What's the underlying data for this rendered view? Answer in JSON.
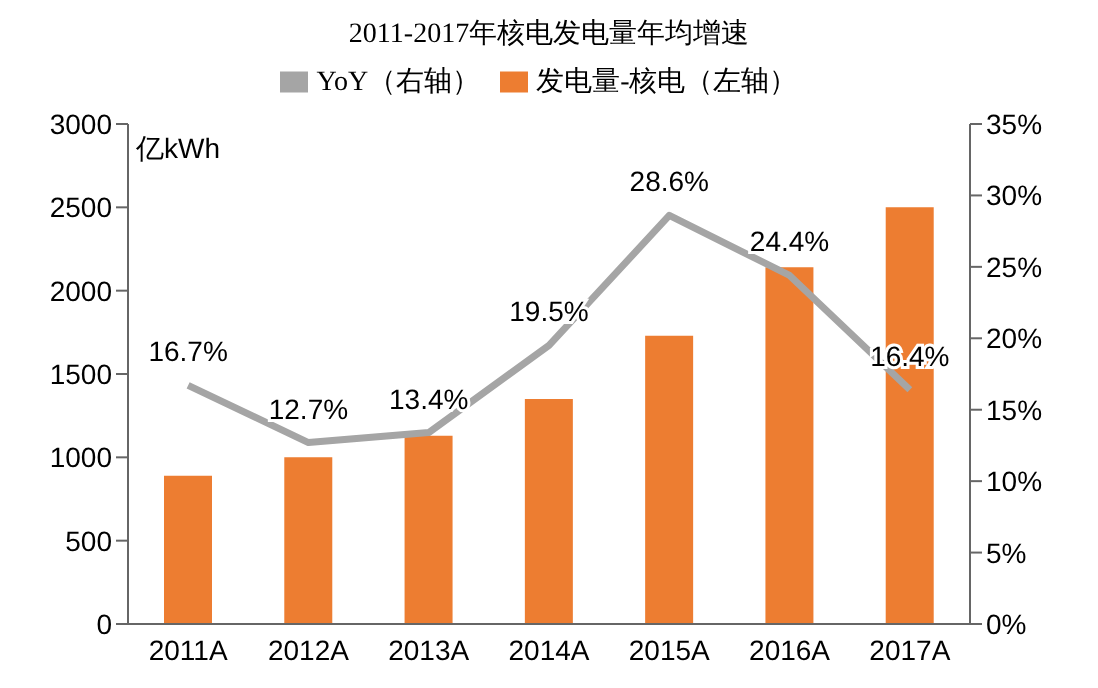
{
  "chart_data": {
    "type": "bar",
    "title": "2011-2017年核电发电量年均增速",
    "ylabel": "亿kWh",
    "categories": [
      "2011A",
      "2012A",
      "2013A",
      "2014A",
      "2015A",
      "2016A",
      "2017A"
    ],
    "series": [
      {
        "name": "发电量-核电（左轴）",
        "color": "#ed7d31",
        "values": [
          890,
          1000,
          1130,
          1350,
          1730,
          2140,
          2500
        ]
      },
      {
        "name": "YoY（右轴）",
        "type": "line",
        "axis": "y2",
        "color": "#a5a5a5",
        "values": [
          16.7,
          12.7,
          13.4,
          19.5,
          28.6,
          24.4,
          16.4
        ],
        "value_labels": [
          "16.7%",
          "12.7%",
          "13.4%",
          "19.5%",
          "28.6%",
          "24.4%",
          "16.4%"
        ]
      }
    ],
    "ylim": [
      0,
      3000
    ],
    "yticks": [
      0,
      500,
      1000,
      1500,
      2000,
      2500,
      3000
    ],
    "y2lim": [
      0,
      35
    ],
    "y2ticks": [
      {
        "value": 0,
        "label": "0%"
      },
      {
        "value": 5,
        "label": "5%"
      },
      {
        "value": 10,
        "label": "10%"
      },
      {
        "value": 15,
        "label": "15%"
      },
      {
        "value": 20,
        "label": "20%"
      },
      {
        "value": 25,
        "label": "25%"
      },
      {
        "value": 30,
        "label": "30%"
      },
      {
        "value": 35,
        "label": "35%"
      }
    ],
    "grid": false,
    "legend": "top",
    "marker": "none"
  }
}
